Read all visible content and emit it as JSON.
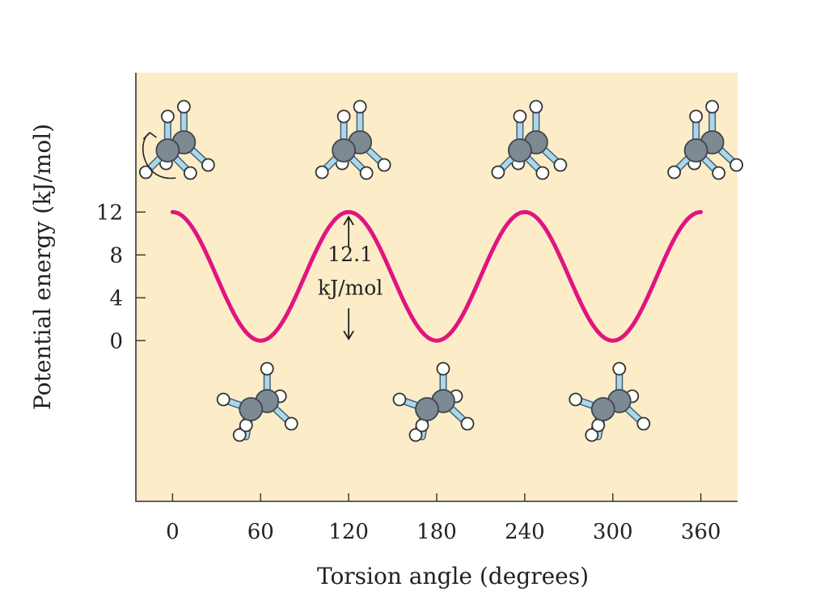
{
  "colors": {
    "plot_background": "#fcecc8",
    "curve": "#e0157f",
    "carbon": "#7d8a93",
    "bond": "#a9d8ee",
    "hydrogen": "#ffffff"
  },
  "chart_data": {
    "type": "line",
    "xlabel": "Torsion angle (degrees)",
    "ylabel": "Potential energy (kJ/mol)",
    "x_ticks": [
      0,
      60,
      120,
      180,
      240,
      300,
      360
    ],
    "y_ticks": [
      0,
      4,
      8,
      12
    ],
    "xlim": [
      -25,
      385
    ],
    "ylim": [
      -15,
      25
    ],
    "series": [
      {
        "x": [
          0,
          30,
          60,
          90,
          120,
          150,
          180,
          210,
          240,
          270,
          300,
          330,
          360
        ],
        "y": [
          12,
          6,
          0,
          6,
          12,
          6,
          0,
          6,
          12,
          6,
          0,
          6,
          12
        ]
      }
    ],
    "annotation": {
      "line1": "12.1",
      "line2": "kJ/mol",
      "x": 120,
      "y_top": 12,
      "y_bottom": 0
    },
    "molecule_icons": {
      "eclipsed_at_x": [
        0,
        120,
        240,
        360
      ],
      "staggered_at_x": [
        60,
        180,
        300
      ],
      "rotation_arrow_at_x": 0
    },
    "grid": false,
    "legend": "none"
  }
}
